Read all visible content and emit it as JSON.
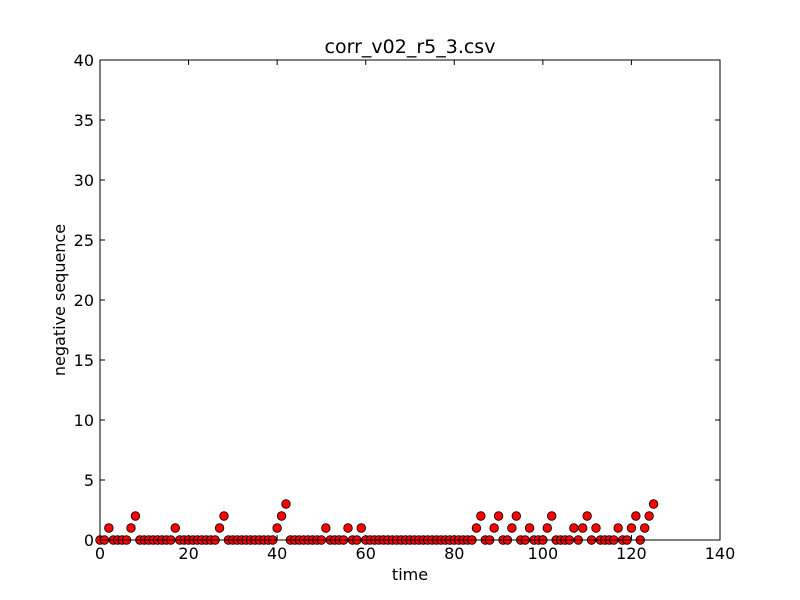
{
  "chart_data": {
    "type": "scatter",
    "title": "corr_v02_r5_3.csv",
    "xlabel": "time",
    "ylabel": "negative sequence",
    "xlim": [
      0,
      140
    ],
    "ylim": [
      0,
      40
    ],
    "xticks": [
      0,
      20,
      40,
      60,
      80,
      100,
      120,
      140
    ],
    "yticks": [
      0,
      5,
      10,
      15,
      20,
      25,
      30,
      35,
      40
    ],
    "grid": false,
    "marker_color": "#ff0000",
    "marker_edge": "#000000",
    "x": [
      0,
      1,
      2,
      3,
      4,
      5,
      6,
      7,
      8,
      9,
      10,
      11,
      12,
      13,
      14,
      15,
      16,
      17,
      18,
      19,
      20,
      21,
      22,
      23,
      24,
      25,
      26,
      27,
      28,
      29,
      30,
      31,
      32,
      33,
      34,
      35,
      36,
      37,
      38,
      39,
      40,
      41,
      42,
      43,
      44,
      45,
      46,
      47,
      48,
      49,
      50,
      51,
      52,
      53,
      54,
      55,
      56,
      57,
      58,
      59,
      60,
      61,
      62,
      63,
      64,
      65,
      66,
      67,
      68,
      69,
      70,
      71,
      72,
      73,
      74,
      75,
      76,
      77,
      78,
      79,
      80,
      81,
      82,
      83,
      84,
      85,
      86,
      87,
      88,
      89,
      90,
      91,
      92,
      93,
      94,
      95,
      96,
      97,
      98,
      99,
      100,
      101,
      102,
      103,
      104,
      105,
      106,
      107,
      108,
      109,
      110,
      111,
      112,
      113,
      114,
      115,
      116,
      117,
      118,
      119,
      120,
      121,
      122,
      123,
      124,
      125
    ],
    "y": [
      0,
      0,
      1,
      0,
      0,
      0,
      0,
      1,
      2,
      0,
      0,
      0,
      0,
      0,
      0,
      0,
      0,
      1,
      0,
      0,
      0,
      0,
      0,
      0,
      0,
      0,
      0,
      1,
      2,
      0,
      0,
      0,
      0,
      0,
      0,
      0,
      0,
      0,
      0,
      0,
      1,
      2,
      3,
      0,
      0,
      0,
      0,
      0,
      0,
      0,
      0,
      1,
      0,
      0,
      0,
      0,
      1,
      0,
      0,
      1,
      0,
      0,
      0,
      0,
      0,
      0,
      0,
      0,
      0,
      0,
      0,
      0,
      0,
      0,
      0,
      0,
      0,
      0,
      0,
      0,
      0,
      0,
      0,
      0,
      0,
      1,
      2,
      0,
      0,
      1,
      2,
      0,
      0,
      1,
      2,
      0,
      0,
      1,
      0,
      0,
      0,
      1,
      2,
      0,
      0,
      0,
      0,
      1,
      0,
      1,
      2,
      0,
      1,
      0,
      0,
      0,
      0,
      1,
      0,
      0,
      1,
      2,
      0,
      1,
      2,
      3
    ]
  }
}
